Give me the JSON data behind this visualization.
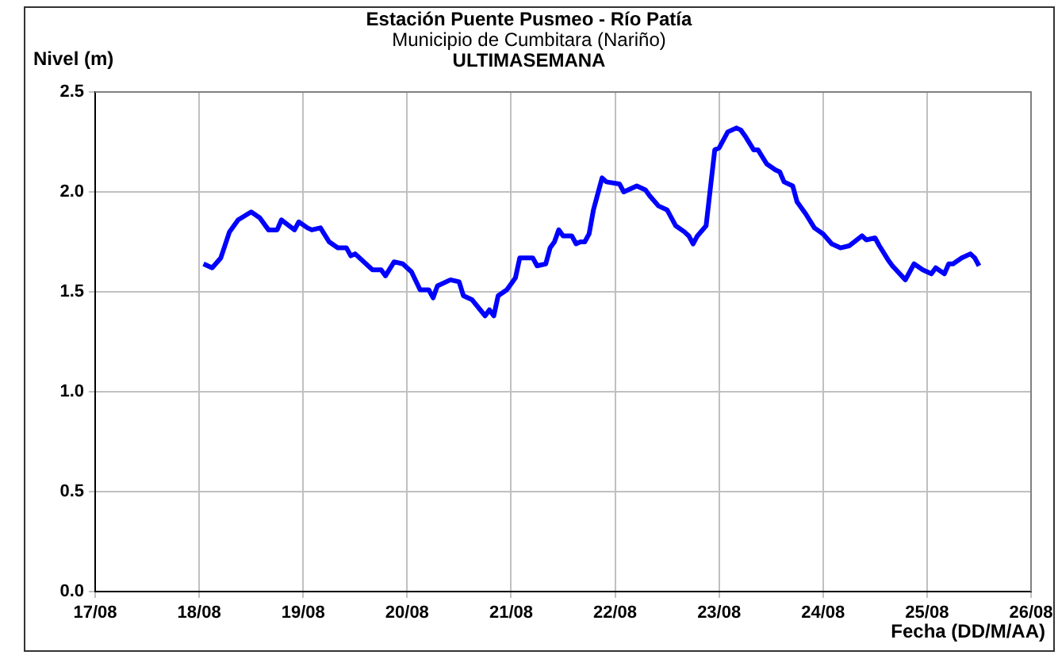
{
  "chart_data": {
    "type": "line",
    "title": "Estación Puente Pusmeo - Río Patía",
    "subtitle": "Municipio de Cumbitara (Nariño)",
    "annotations": [
      "ULTIMASEMANA"
    ],
    "xlabel": "Fecha (DD/M/AA)",
    "ylabel": "Nivel (m)",
    "x": [
      "--08-18T01:00",
      "--08-18T03:00",
      "--08-18T05:00",
      "--08-18T07:00",
      "--08-18T09:00",
      "--08-18T12:00",
      "--08-18T14:00",
      "--08-18T16:00",
      "--08-18T18:00",
      "--08-18T19:00",
      "--08-18T22:00",
      "--08-18T23:00",
      "--08-19T01:00",
      "--08-19T02:00",
      "--08-19T04:00",
      "--08-19T06:00",
      "--08-19T08:00",
      "--08-19T10:00",
      "--08-19T11:00",
      "--08-19T12:00",
      "--08-19T16:00",
      "--08-19T18:00",
      "--08-19T19:00",
      "--08-19T21:00",
      "--08-19T23:00",
      "--08-20T01:00",
      "--08-20T03:00",
      "--08-20T05:00",
      "--08-20T06:00",
      "--08-20T07:00",
      "--08-20T10:00",
      "--08-20T12:00",
      "--08-20T13:00",
      "--08-20T15:00",
      "--08-20T18:00",
      "--08-20T19:00",
      "--08-20T20:00",
      "--08-20T21:00",
      "--08-20T23:00",
      "--08-21T00:00",
      "--08-21T01:00",
      "--08-21T02:00",
      "--08-21T05:00",
      "--08-21T06:00",
      "--08-21T08:00",
      "--08-21T09:00",
      "--08-21T10:00",
      "--08-21T11:00",
      "--08-21T12:00",
      "--08-21T14:00",
      "--08-21T15:00",
      "--08-21T16:00",
      "--08-21T17:00",
      "--08-21T18:00",
      "--08-21T19:00",
      "--08-21T21:00",
      "--08-21T22:00",
      "--08-22T01:00",
      "--08-22T02:00",
      "--08-22T05:00",
      "--08-22T07:00",
      "--08-22T08:00",
      "--08-22T10:00",
      "--08-22T12:00",
      "--08-22T14:00",
      "--08-22T16:00",
      "--08-22T17:00",
      "--08-22T18:00",
      "--08-22T19:00",
      "--08-22T21:00",
      "--08-22T22:00",
      "--08-22T23:00",
      "--08-23T00:00",
      "--08-23T02:00",
      "--08-23T04:00",
      "--08-23T05:00",
      "--08-23T06:00",
      "--08-23T08:00",
      "--08-23T09:00",
      "--08-23T11:00",
      "--08-23T13:00",
      "--08-23T14:00",
      "--08-23T15:00",
      "--08-23T17:00",
      "--08-23T18:00",
      "--08-23T20:00",
      "--08-23T22:00",
      "--08-24T00:00",
      "--08-24T02:00",
      "--08-24T04:00",
      "--08-24T06:00",
      "--08-24T09:00",
      "--08-24T10:00",
      "--08-24T12:00",
      "--08-24T13:00",
      "--08-24T15:00",
      "--08-24T16:00",
      "--08-24T19:00",
      "--08-24T20:00",
      "--08-24T21:00",
      "--08-24T23:00",
      "--08-25T01:00",
      "--08-25T02:00",
      "--08-25T04:00",
      "--08-25T05:00",
      "--08-25T06:00",
      "--08-25T08:00",
      "--08-25T10:00",
      "--08-25T11:00",
      "--08-25T12:00"
    ],
    "series": [
      {
        "color": "#0000ff",
        "values": [
          1.64,
          1.62,
          1.67,
          1.8,
          1.86,
          1.9,
          1.87,
          1.81,
          1.81,
          1.86,
          1.81,
          1.85,
          1.82,
          1.81,
          1.82,
          1.75,
          1.72,
          1.72,
          1.68,
          1.69,
          1.61,
          1.61,
          1.58,
          1.65,
          1.64,
          1.6,
          1.51,
          1.51,
          1.47,
          1.53,
          1.56,
          1.55,
          1.48,
          1.46,
          1.38,
          1.41,
          1.38,
          1.48,
          1.51,
          1.54,
          1.57,
          1.67,
          1.67,
          1.63,
          1.64,
          1.72,
          1.75,
          1.81,
          1.78,
          1.78,
          1.74,
          1.75,
          1.75,
          1.79,
          1.91,
          2.07,
          2.05,
          2.04,
          2.0,
          2.03,
          2.01,
          1.98,
          1.93,
          1.91,
          1.83,
          1.8,
          1.78,
          1.74,
          1.78,
          1.83,
          2.02,
          2.21,
          2.22,
          2.3,
          2.32,
          2.31,
          2.28,
          2.21,
          2.21,
          2.14,
          2.11,
          2.1,
          2.05,
          2.03,
          1.95,
          1.89,
          1.82,
          1.79,
          1.74,
          1.72,
          1.73,
          1.78,
          1.76,
          1.77,
          1.73,
          1.66,
          1.63,
          1.56,
          1.6,
          1.64,
          1.61,
          1.59,
          1.62,
          1.59,
          1.64,
          1.64,
          1.67,
          1.69,
          1.67,
          1.63
        ]
      }
    ],
    "xlim": [
      "--08-17",
      "--08-26"
    ],
    "xticks": [
      {
        "value": "--08-17",
        "label": "17/08"
      },
      {
        "value": "--08-18",
        "label": "18/08"
      },
      {
        "value": "--08-19",
        "label": "19/08"
      },
      {
        "value": "--08-20",
        "label": "20/08"
      },
      {
        "value": "--08-21",
        "label": "21/08"
      },
      {
        "value": "--08-22",
        "label": "22/08"
      },
      {
        "value": "--08-23",
        "label": "23/08"
      },
      {
        "value": "--08-24",
        "label": "24/08"
      },
      {
        "value": "--08-25",
        "label": "25/08"
      },
      {
        "value": "--08-26",
        "label": "26/08"
      }
    ],
    "ylim": [
      0,
      2.5
    ],
    "yticks": [
      {
        "value": 0,
        "label": "0.0"
      },
      {
        "value": 0.5,
        "label": "0.5"
      },
      {
        "value": 1,
        "label": "1.0"
      },
      {
        "value": 1.5,
        "label": "1.5"
      },
      {
        "value": 2,
        "label": "2.0"
      },
      {
        "value": 2.5,
        "label": "2.5"
      }
    ],
    "grid": true,
    "legend": false,
    "marker": "none",
    "line_style": "solid"
  }
}
